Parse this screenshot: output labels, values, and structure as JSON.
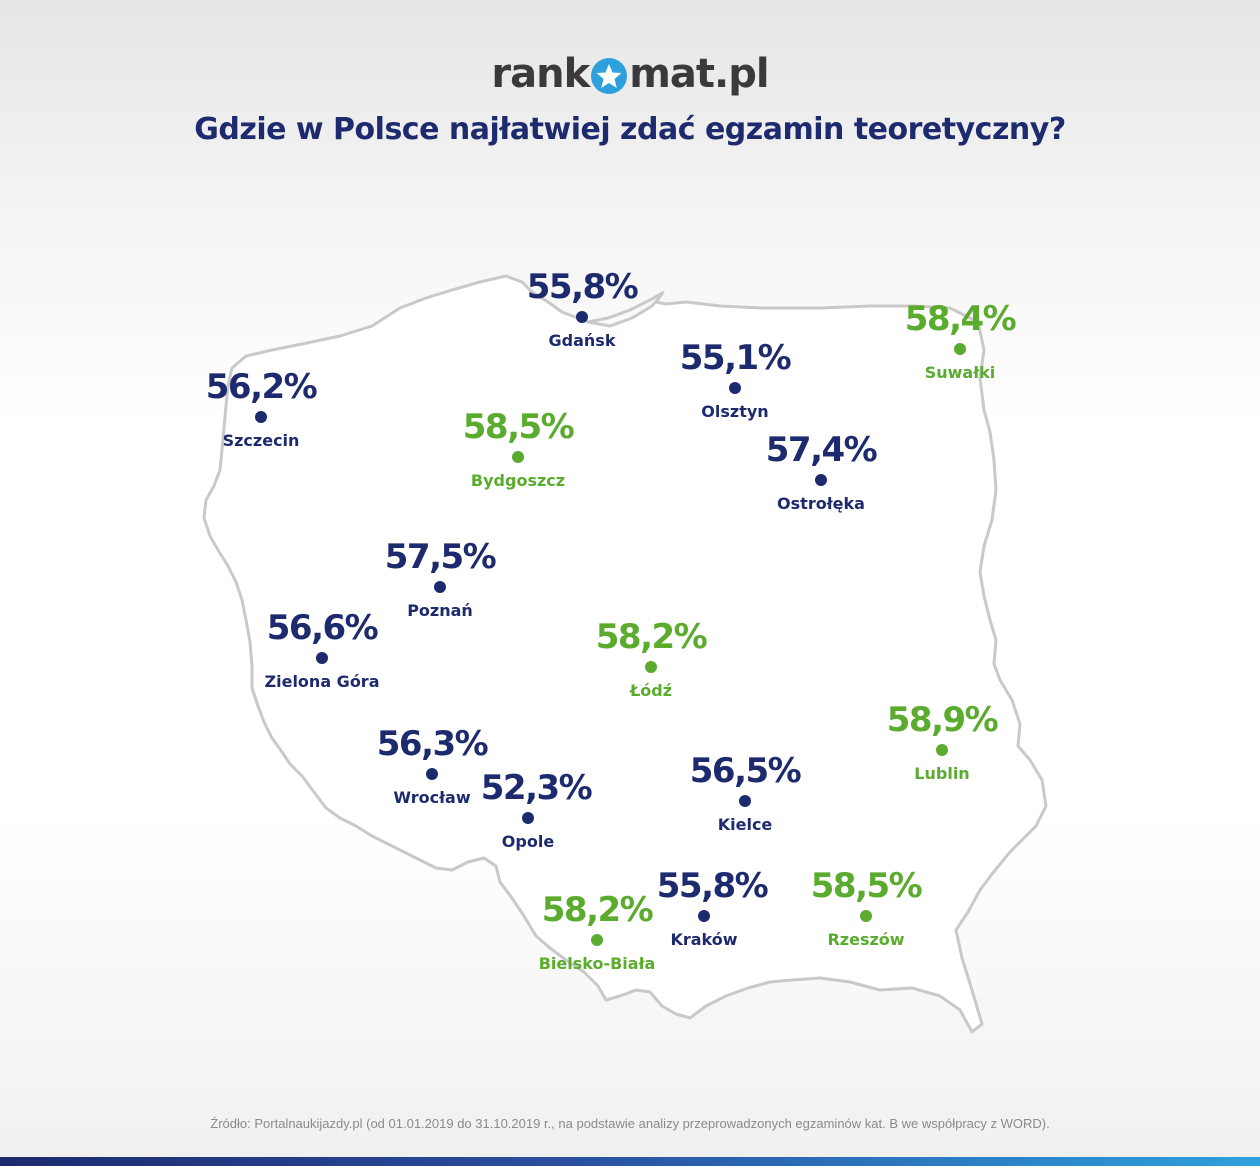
{
  "brand": {
    "part1": "rank",
    "part2": "mat.pl",
    "logo_icon": "star-icon",
    "colors": {
      "navy": "#1d2a6e",
      "green": "#5aab2e",
      "accent": "#2ea1dd",
      "logo_text": "#3a3a3a"
    }
  },
  "title": "Gdzie w Polsce najłatwiej zdać egzamin teoretyczny?",
  "cities": [
    {
      "name": "Gdańsk",
      "value": "55,8%",
      "color": "navy"
    },
    {
      "name": "Suwałki",
      "value": "58,4%",
      "color": "green"
    },
    {
      "name": "Szczecin",
      "value": "56,2%",
      "color": "navy"
    },
    {
      "name": "Olsztyn",
      "value": "55,1%",
      "color": "navy"
    },
    {
      "name": "Bydgoszcz",
      "value": "58,5%",
      "color": "green"
    },
    {
      "name": "Ostrołęka",
      "value": "57,4%",
      "color": "navy"
    },
    {
      "name": "Poznań",
      "value": "57,5%",
      "color": "navy"
    },
    {
      "name": "Zielona Góra",
      "value": "56,6%",
      "color": "navy"
    },
    {
      "name": "Łódź",
      "value": "58,2%",
      "color": "green"
    },
    {
      "name": "Lublin",
      "value": "58,9%",
      "color": "green"
    },
    {
      "name": "Wrocław",
      "value": "56,3%",
      "color": "navy"
    },
    {
      "name": "Opole",
      "value": "52,3%",
      "color": "navy"
    },
    {
      "name": "Kielce",
      "value": "56,5%",
      "color": "navy"
    },
    {
      "name": "Bielsko-Biała",
      "value": "58,2%",
      "color": "green"
    },
    {
      "name": "Kraków",
      "value": "55,8%",
      "color": "navy"
    },
    {
      "name": "Rzeszów",
      "value": "58,5%",
      "color": "green"
    }
  ],
  "source": "Źródło: Portalnaukijazdy.pl (od 01.01.2019 do 31.10.2019 r., na podstawie analizy przeprowadzonych egzaminów kat. B we współpracy z WORD)."
}
